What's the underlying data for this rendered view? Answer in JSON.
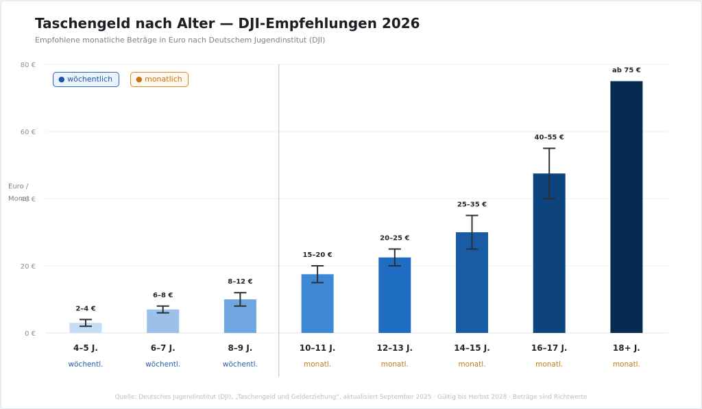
{
  "chart_data": {
    "type": "bar",
    "title": "Taschengeld nach Alter — DJI-Empfehlungen 2026",
    "subtitle": "Empfohlene monatliche Beträge in Euro nach Deutschem Jugendinstitut (DJI)",
    "ylabel": "Euro / Monat",
    "ylim": [
      0,
      80
    ],
    "y_ticks": [
      0,
      20,
      40,
      60,
      80
    ],
    "y_tick_labels": [
      "0 €",
      "20 €",
      "40 €",
      "60 €",
      "80 €"
    ],
    "grid": true,
    "legend": [
      {
        "label": "wöchentlich",
        "color": "#2460ad"
      },
      {
        "label": "monatlich",
        "color": "#c27a1e"
      }
    ],
    "categories": [
      "4–5 J.",
      "6–7 J.",
      "8–9 J.",
      "10–11 J.",
      "12–13 J.",
      "14–15 J.",
      "16–17 J.",
      "18+ J."
    ],
    "frequency_labels": [
      "wöchentl.",
      "wöchentl.",
      "wöchentl.",
      "monatl.",
      "monatl.",
      "monatl.",
      "monatl.",
      "monatl."
    ],
    "frequency": [
      "weekly",
      "weekly",
      "weekly",
      "monthly",
      "monthly",
      "monthly",
      "monthly",
      "monthly"
    ],
    "values": [
      3,
      7,
      10,
      17.5,
      22.5,
      30,
      47.5,
      75
    ],
    "range_low": [
      2,
      6,
      8,
      15,
      20,
      25,
      40,
      null
    ],
    "range_high": [
      4,
      8,
      12,
      20,
      25,
      35,
      55,
      null
    ],
    "value_labels": [
      "2–4 €",
      "6–8 €",
      "8–12 €",
      "15–20 €",
      "20–25 €",
      "25–35 €",
      "40–55 €",
      "ab 75 €"
    ],
    "bar_colors": [
      "#c6dcf5",
      "#9bc0ea",
      "#6fa5e0",
      "#3f88d3",
      "#1f6dc2",
      "#175ca5",
      "#0d447e",
      "#062a50"
    ]
  },
  "footer": {
    "text": "Quelle: Deutsches Jugendinstitut (DJI), „Taschengeld und Gelderziehung“, aktualisiert September 2025 · Gültig bis Herbst 2028 · Beträge sind Richtwerte"
  }
}
